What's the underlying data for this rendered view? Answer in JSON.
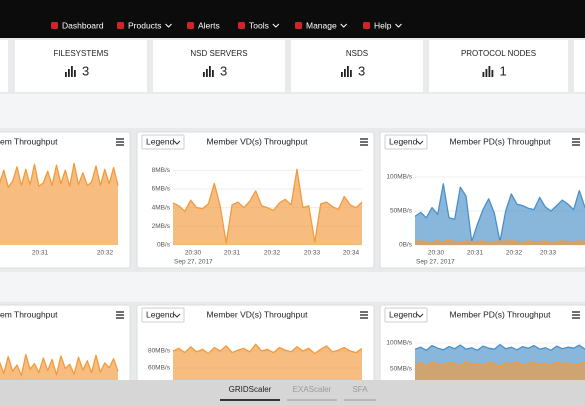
{
  "nav": {
    "items": [
      "Dashboard",
      "Products",
      "Alerts",
      "Tools",
      "Manage",
      "Help"
    ]
  },
  "summary": [
    {
      "label": "FILESYSTEMS",
      "count": 3
    },
    {
      "label": "NSD SERVERS",
      "count": 3
    },
    {
      "label": "NSDS",
      "count": 3
    },
    {
      "label": "PROTOCOL NODES",
      "count": 1
    }
  ],
  "panels": [
    {
      "title": "em Throughput",
      "ylim": [
        0,
        10
      ],
      "xticks": [
        "20:31",
        "20:32"
      ],
      "series": [
        {
          "color": "#f39a3c",
          "values": [
            7,
            7.2,
            8.8,
            6.8,
            7.5,
            9.2,
            7,
            8.9,
            7.1,
            9.5,
            6.9,
            7.3,
            8.7,
            7,
            9.4,
            7.2,
            8.8,
            6.9,
            9.6,
            7.1,
            8.5,
            7,
            7.4,
            9.3,
            7,
            8.9,
            7.2,
            9.1,
            7
          ]
        }
      ]
    },
    {
      "title": "Member VD(s) Throughput",
      "legend": "Legend",
      "ylim": [
        0,
        9
      ],
      "yticks": [
        {
          "value": 0,
          "label": "0B/s"
        },
        {
          "value": 2,
          "label": "2MB/s"
        },
        {
          "value": 4,
          "label": "4MB/s"
        },
        {
          "value": 6,
          "label": "6MB/s"
        },
        {
          "value": 8,
          "label": "8MB/s"
        }
      ],
      "xticks": [
        "20:30",
        "20:31",
        "20:32",
        "20:33",
        "20:34"
      ],
      "date": "Sep 27, 2017",
      "series": [
        {
          "color": "#f39a3c",
          "values": [
            4.5,
            4.2,
            3.6,
            4.8,
            4.0,
            3.9,
            4.4,
            6.6,
            4.1,
            0.2,
            4.3,
            4.6,
            4.0,
            4.7,
            5.8,
            4.2,
            4.0,
            3.7,
            4.5,
            4.9,
            4.3,
            8.1,
            4.0,
            4.2,
            0.3,
            4.4,
            4.6,
            4.1,
            3.8,
            5.2,
            4.3,
            4.0,
            4.6
          ]
        }
      ]
    },
    {
      "title": "Member PD(s) Throughput",
      "legend": "Legend",
      "ylim": [
        0,
        125
      ],
      "yticks": [
        {
          "value": 0,
          "label": "0B/s"
        },
        {
          "value": 50,
          "label": "50MB/s"
        },
        {
          "value": 100,
          "label": "100MB/s"
        }
      ],
      "xticks": [
        "20:30",
        "20:31",
        "20:32",
        "20:33"
      ],
      "date": "Sep 27, 2017",
      "series": [
        {
          "color": "#4a90c8",
          "values": [
            42,
            48,
            40,
            55,
            45,
            90,
            40,
            38,
            85,
            72,
            5,
            30,
            52,
            68,
            47,
            5,
            50,
            75,
            60,
            58,
            54,
            52,
            70,
            56,
            50,
            58,
            66,
            60,
            52,
            80,
            55
          ]
        },
        {
          "color": "#f39a3c",
          "values": [
            5,
            6,
            5,
            4,
            6,
            5,
            7,
            5,
            4,
            6,
            5,
            5,
            6,
            4,
            5,
            6,
            5,
            7,
            5,
            4,
            6,
            5,
            5,
            6,
            4,
            5,
            6,
            5,
            5,
            6,
            5
          ]
        }
      ]
    },
    {
      "title": "em Throughput",
      "ylim": [
        0,
        10
      ],
      "series": [
        {
          "color": "#f39a3c",
          "values": [
            4,
            5.5,
            3.8,
            6.2,
            4.1,
            5,
            3.5,
            6.5,
            4.4,
            5.2,
            3.9,
            6,
            4.2,
            5.8,
            3.6,
            6.3,
            4.5,
            5.1,
            3.7,
            6.1,
            4.3,
            5.6,
            3.9,
            6.4,
            4,
            5.3,
            4.6,
            5.9,
            4.1
          ]
        }
      ]
    },
    {
      "title": "Member VD(s) Throughput",
      "legend": "Legend",
      "ylim": [
        40,
        100
      ],
      "yticks": [
        {
          "value": 60,
          "label": "60MB/s"
        },
        {
          "value": 80,
          "label": "80MB/s"
        }
      ],
      "series": [
        {
          "color": "#f39a3c",
          "values": [
            80,
            83,
            78,
            85,
            79,
            82,
            77,
            84,
            80,
            86,
            78,
            81,
            83,
            79,
            88,
            80,
            82,
            78,
            84,
            81,
            79,
            85,
            80,
            83,
            77,
            82,
            86,
            79,
            81,
            84,
            80,
            78,
            83
          ]
        }
      ]
    },
    {
      "title": "Member PD(s) Throughput",
      "legend": "Legend",
      "ylim": [
        0,
        125
      ],
      "yticks": [
        {
          "value": 50,
          "label": "50MB/s"
        },
        {
          "value": 100,
          "label": "100MB/s"
        }
      ],
      "series": [
        {
          "color": "#4a90c8",
          "values": [
            88,
            92,
            86,
            95,
            90,
            87,
            93,
            89,
            96,
            88,
            91,
            86,
            94,
            90,
            88,
            97,
            89,
            92,
            87,
            93,
            90,
            95,
            88,
            91,
            86,
            94,
            89,
            92,
            90,
            96,
            88
          ]
        },
        {
          "color": "#f39a3c",
          "values": [
            58,
            62,
            55,
            64,
            59,
            57,
            63,
            60,
            56,
            65,
            58,
            61,
            57,
            63,
            60,
            55,
            62,
            59,
            64,
            57,
            60,
            63,
            58,
            61,
            56,
            64,
            59,
            62,
            57,
            60,
            63
          ]
        }
      ]
    }
  ],
  "tabs": {
    "items": [
      "GRIDScaler",
      "EXAScaler",
      "SFA"
    ]
  }
}
